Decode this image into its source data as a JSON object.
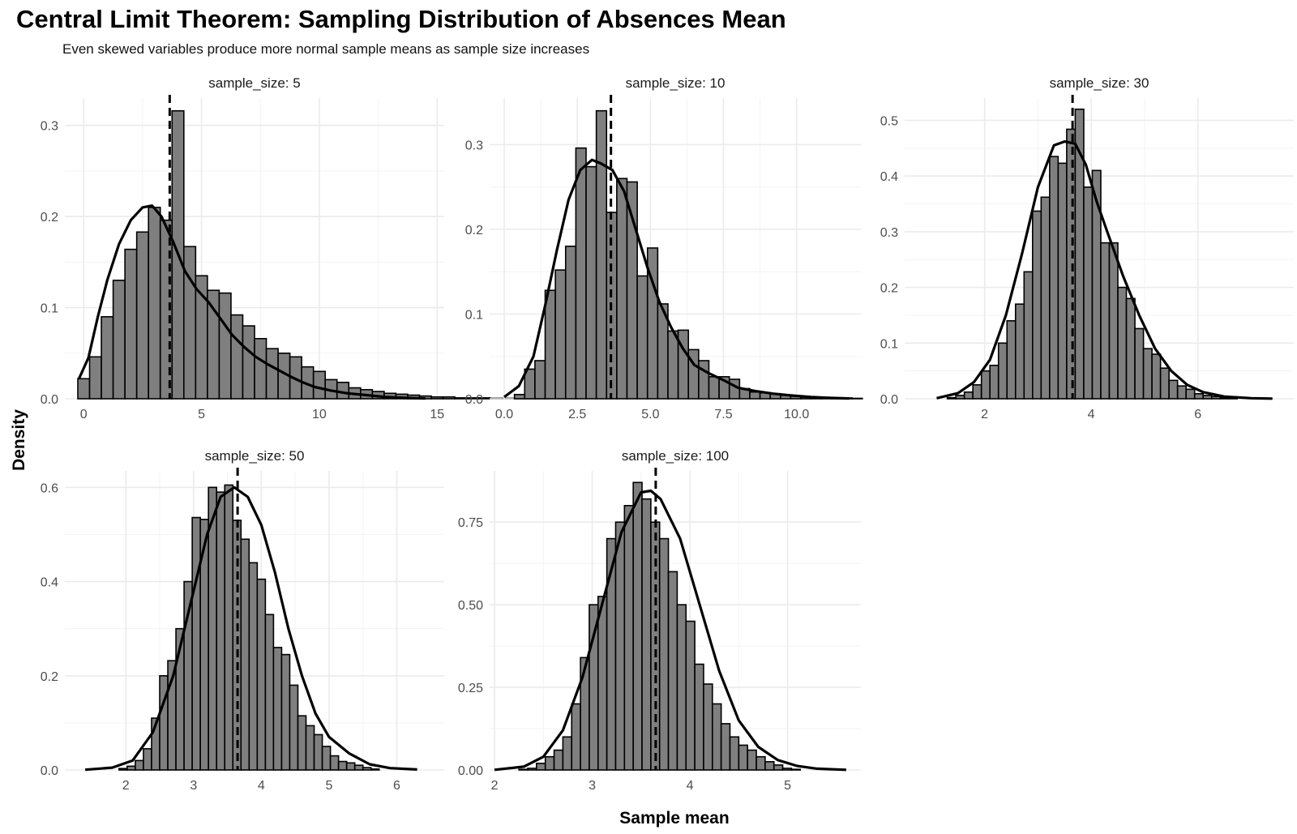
{
  "title": "Central Limit Theorem: Sampling Distribution of Absences Mean",
  "subtitle": "Even skewed variables produce more normal sample means as sample size increases",
  "chart_data": {
    "type": "histogram",
    "xlabel": "Sample mean",
    "ylabel": "Density",
    "grid": true,
    "overlays": [
      "density curve",
      "dashed vertical line at mean"
    ],
    "colors": {
      "bar_fill": "#7f7f7f",
      "bar_stroke": "#000000",
      "curve": "#000000",
      "grid": "#ebebeb"
    },
    "panels": [
      {
        "strip": "sample_size: 5",
        "xlim": [
          -0.8,
          15.3
        ],
        "ylim": [
          0,
          0.33
        ],
        "xticks": [
          0,
          5,
          10,
          15
        ],
        "xtick_labels": [
          "0",
          "5",
          "10",
          "15"
        ],
        "yticks": [
          0,
          0.1,
          0.2,
          0.3
        ],
        "ytick_labels": [
          "0.0",
          "0.1",
          "0.2",
          "0.3"
        ],
        "mean": 3.65,
        "bin_start": -0.25,
        "bin_width": 0.5,
        "densities": [
          0.022,
          0.046,
          0.09,
          0.13,
          0.164,
          0.183,
          0.21,
          0.196,
          0.316,
          0.167,
          0.135,
          0.119,
          0.116,
          0.092,
          0.08,
          0.066,
          0.055,
          0.05,
          0.046,
          0.035,
          0.03,
          0.021,
          0.018,
          0.012,
          0.01,
          0.008,
          0.006,
          0.005,
          0.004,
          0.003,
          0.002,
          0.002,
          0.001,
          0.001,
          0.001,
          0.0005,
          0.0005,
          0.0002,
          0.0002,
          0.0001
        ],
        "curve_x": [
          -0.2,
          0.2,
          0.6,
          1.0,
          1.5,
          2.0,
          2.5,
          2.9,
          3.3,
          3.8,
          4.3,
          4.8,
          5.3,
          5.8,
          6.3,
          6.8,
          7.3,
          7.8,
          8.3,
          8.8,
          9.3,
          9.8,
          10.5,
          11.2,
          12.0,
          12.8,
          13.6,
          14.5
        ],
        "curve_y": [
          0.022,
          0.045,
          0.09,
          0.13,
          0.17,
          0.196,
          0.21,
          0.212,
          0.2,
          0.172,
          0.14,
          0.12,
          0.106,
          0.088,
          0.07,
          0.057,
          0.046,
          0.038,
          0.031,
          0.024,
          0.018,
          0.013,
          0.009,
          0.006,
          0.004,
          0.002,
          0.001,
          0.0003
        ]
      },
      {
        "strip": "sample_size: 10",
        "xlim": [
          -0.5,
          12.2
        ],
        "ylim": [
          0,
          0.355
        ],
        "xticks": [
          0,
          2.5,
          5,
          7.5,
          10
        ],
        "xtick_labels": [
          "0.0",
          "2.5",
          "5.0",
          "7.5",
          "10.0"
        ],
        "yticks": [
          0,
          0.1,
          0.2,
          0.3
        ],
        "ytick_labels": [
          "0.0",
          "0.1",
          "0.2",
          "0.3"
        ],
        "mean": 3.65,
        "bin_start": 0.35,
        "bin_width": 0.35,
        "densities": [
          0.005,
          0.035,
          0.045,
          0.128,
          0.152,
          0.18,
          0.296,
          0.274,
          0.34,
          0.22,
          0.26,
          0.256,
          0.145,
          0.178,
          0.112,
          0.08,
          0.081,
          0.058,
          0.045,
          0.026,
          0.026,
          0.023,
          0.012,
          0.008,
          0.007,
          0.006,
          0.004,
          0.003,
          0.002,
          0.002,
          0.001,
          0.001,
          0.001,
          0.0005
        ],
        "curve_x": [
          0.0,
          0.5,
          1.0,
          1.4,
          1.8,
          2.2,
          2.6,
          3.0,
          3.3,
          3.7,
          4.1,
          4.5,
          4.9,
          5.3,
          5.7,
          6.1,
          6.5,
          7.0,
          7.5,
          8.0,
          8.6,
          9.2,
          9.8,
          10.5,
          11.2,
          11.8
        ],
        "curve_y": [
          0.002,
          0.015,
          0.05,
          0.11,
          0.175,
          0.235,
          0.27,
          0.282,
          0.278,
          0.27,
          0.245,
          0.2,
          0.155,
          0.115,
          0.085,
          0.06,
          0.04,
          0.03,
          0.022,
          0.013,
          0.009,
          0.006,
          0.004,
          0.002,
          0.001,
          0.0004
        ]
      },
      {
        "strip": "sample_size: 30",
        "xlim": [
          0.5,
          7.8
        ],
        "ylim": [
          0,
          0.54
        ],
        "xticks": [
          2,
          4,
          6
        ],
        "xtick_labels": [
          "2",
          "4",
          "6"
        ],
        "yticks": [
          0,
          0.1,
          0.2,
          0.3,
          0.4,
          0.5
        ],
        "ytick_labels": [
          "0.0",
          "0.1",
          "0.2",
          "0.3",
          "0.4",
          "0.5"
        ],
        "mean": 3.65,
        "bin_start": 1.3,
        "bin_width": 0.16,
        "densities": [
          0.002,
          0.006,
          0.012,
          0.025,
          0.05,
          0.06,
          0.1,
          0.14,
          0.17,
          0.228,
          0.337,
          0.362,
          0.435,
          0.423,
          0.484,
          0.52,
          0.38,
          0.41,
          0.28,
          0.28,
          0.2,
          0.18,
          0.126,
          0.09,
          0.08,
          0.055,
          0.033,
          0.023,
          0.017,
          0.009,
          0.006,
          0.004,
          0.002,
          0.001
        ],
        "curve_x": [
          1.1,
          1.5,
          1.8,
          2.1,
          2.4,
          2.7,
          3.0,
          3.3,
          3.5,
          3.7,
          3.9,
          4.1,
          4.3,
          4.6,
          4.9,
          5.2,
          5.5,
          5.8,
          6.1,
          6.5,
          7.0,
          7.4
        ],
        "curve_y": [
          0.001,
          0.01,
          0.03,
          0.07,
          0.15,
          0.26,
          0.38,
          0.455,
          0.462,
          0.458,
          0.42,
          0.355,
          0.3,
          0.22,
          0.15,
          0.09,
          0.05,
          0.025,
          0.012,
          0.004,
          0.001,
          0.0003
        ]
      },
      {
        "strip": "sample_size: 50",
        "xlim": [
          1.1,
          6.7
        ],
        "ylim": [
          0,
          0.635
        ],
        "xticks": [
          2,
          3,
          4,
          5,
          6
        ],
        "xtick_labels": [
          "2",
          "3",
          "4",
          "5",
          "6"
        ],
        "yticks": [
          0,
          0.2,
          0.4,
          0.6
        ],
        "ytick_labels": [
          "0.0",
          "0.2",
          "0.4",
          "0.6"
        ],
        "mean": 3.65,
        "bin_start": 1.9,
        "bin_width": 0.12,
        "densities": [
          0.003,
          0.008,
          0.02,
          0.045,
          0.11,
          0.2,
          0.232,
          0.3,
          0.4,
          0.536,
          0.532,
          0.6,
          0.59,
          0.605,
          0.53,
          0.49,
          0.44,
          0.405,
          0.33,
          0.26,
          0.245,
          0.18,
          0.115,
          0.094,
          0.075,
          0.05,
          0.03,
          0.018,
          0.015,
          0.01,
          0.005,
          0.002
        ],
        "curve_x": [
          1.4,
          1.8,
          2.1,
          2.4,
          2.7,
          3.0,
          3.2,
          3.4,
          3.6,
          3.8,
          4.0,
          4.2,
          4.4,
          4.6,
          4.8,
          5.0,
          5.3,
          5.6,
          5.9,
          6.3
        ],
        "curve_y": [
          0.0005,
          0.005,
          0.02,
          0.08,
          0.2,
          0.38,
          0.5,
          0.58,
          0.6,
          0.58,
          0.52,
          0.42,
          0.3,
          0.2,
          0.12,
          0.07,
          0.035,
          0.012,
          0.004,
          0.001
        ]
      },
      {
        "strip": "sample_size: 100",
        "xlim": [
          1.95,
          5.75
        ],
        "ylim": [
          0,
          0.905
        ],
        "xticks": [
          2,
          3,
          4,
          5
        ],
        "xtick_labels": [
          "2",
          "3",
          "4",
          "5"
        ],
        "yticks": [
          0,
          0.25,
          0.5,
          0.75
        ],
        "ytick_labels": [
          "0.00",
          "0.25",
          "0.50",
          "0.75"
        ],
        "mean": 3.65,
        "bin_start": 2.25,
        "bin_width": 0.09,
        "densities": [
          0.002,
          0.005,
          0.02,
          0.04,
          0.06,
          0.1,
          0.2,
          0.34,
          0.5,
          0.525,
          0.7,
          0.75,
          0.8,
          0.87,
          0.82,
          0.75,
          0.7,
          0.6,
          0.5,
          0.45,
          0.32,
          0.26,
          0.2,
          0.14,
          0.1,
          0.075,
          0.06,
          0.04,
          0.025,
          0.015,
          0.005,
          0.002
        ],
        "curve_x": [
          2.0,
          2.3,
          2.5,
          2.7,
          2.9,
          3.1,
          3.3,
          3.5,
          3.6,
          3.7,
          3.9,
          4.1,
          4.3,
          4.5,
          4.7,
          4.9,
          5.1,
          5.3,
          5.6
        ],
        "curve_y": [
          0.0005,
          0.01,
          0.04,
          0.12,
          0.28,
          0.5,
          0.72,
          0.84,
          0.845,
          0.82,
          0.7,
          0.5,
          0.3,
          0.15,
          0.07,
          0.03,
          0.012,
          0.004,
          0.0005
        ]
      }
    ]
  }
}
